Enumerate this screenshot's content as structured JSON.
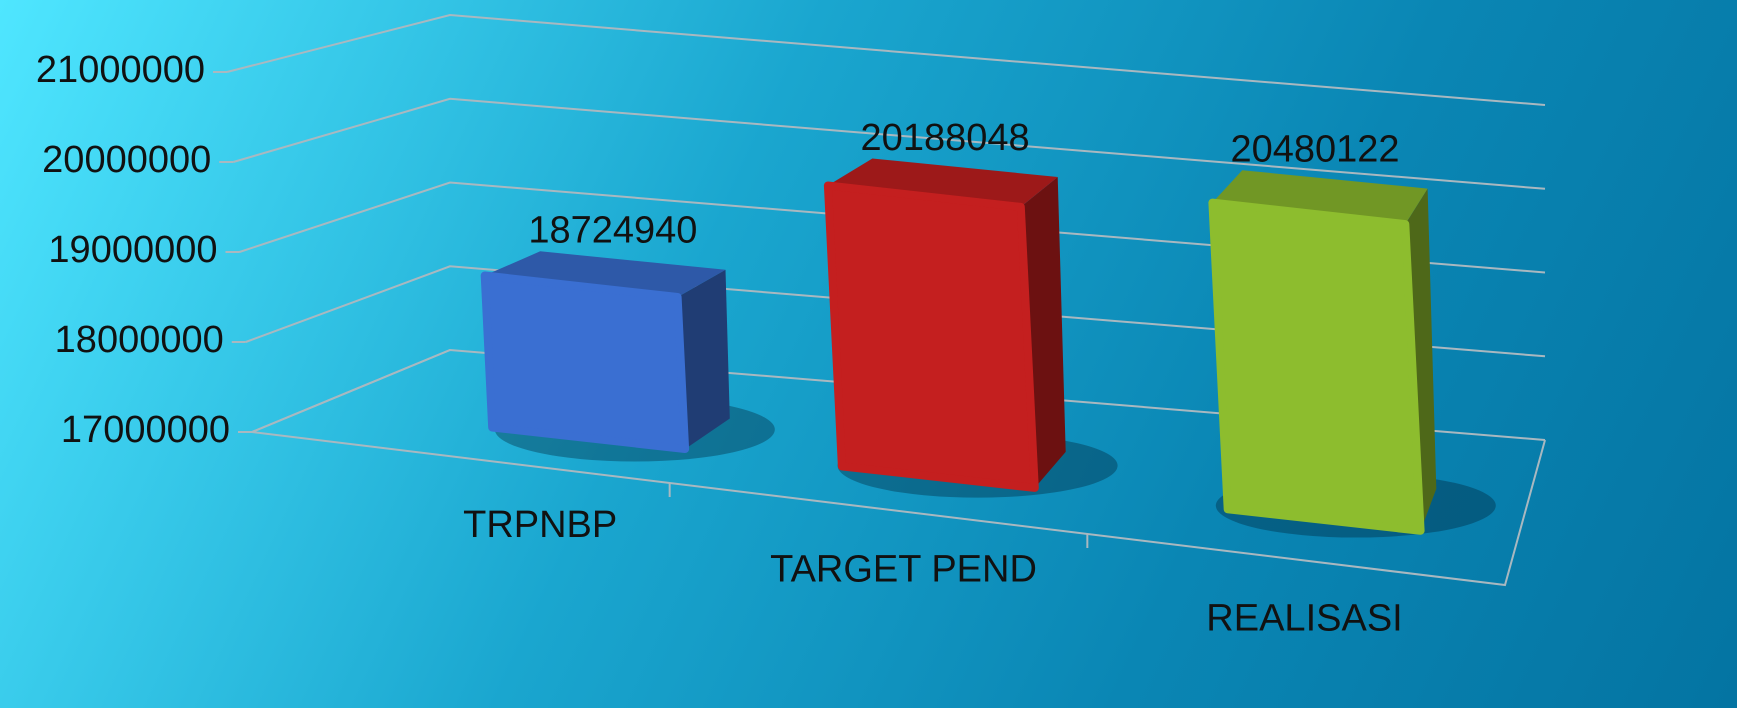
{
  "chart_data": {
    "type": "bar3d",
    "categories": [
      "TRPNBP",
      "TARGET PEND",
      "REALISASI"
    ],
    "values": [
      18724940,
      20188048,
      20480122
    ],
    "colors": [
      "#3a6fd2",
      "#c41f1f",
      "#8dbd2e"
    ],
    "ylim": [
      17000000,
      21000000
    ],
    "yticks": [
      17000000,
      18000000,
      19000000,
      20000000,
      21000000
    ],
    "grid": true
  }
}
